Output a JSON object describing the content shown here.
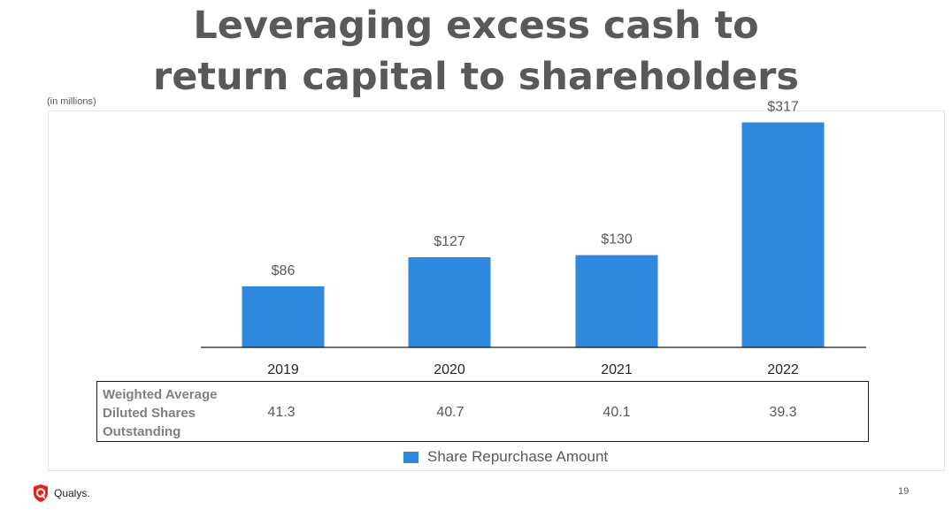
{
  "title": {
    "line1": "Leveraging excess cash to",
    "line2": "return capital to shareholders"
  },
  "units_note": "(in millions)",
  "chart_data": {
    "type": "bar",
    "categories": [
      "2019",
      "2020",
      "2021",
      "2022"
    ],
    "values": [
      86,
      127,
      130,
      317
    ],
    "data_labels": [
      "$86",
      "$127",
      "$130",
      "$317"
    ],
    "series": [
      {
        "name": "Share Repurchase Amount",
        "values": [
          86,
          127,
          130,
          317
        ]
      }
    ],
    "bar_color": "#2e88dd",
    "ylim": [
      0,
      340
    ],
    "grid": false,
    "legend_position": "bottom-center"
  },
  "table": {
    "row_label_lines": [
      "Weighted Average",
      "Diluted Shares",
      "Outstanding"
    ],
    "values": [
      "41.3",
      "40.7",
      "40.1",
      "39.3"
    ]
  },
  "legend": {
    "label": "Share Repurchase Amount",
    "color": "#2e88dd"
  },
  "footer": {
    "logo_text": "Qualys.",
    "logo_color": "#e2231a",
    "page_number": "19"
  }
}
